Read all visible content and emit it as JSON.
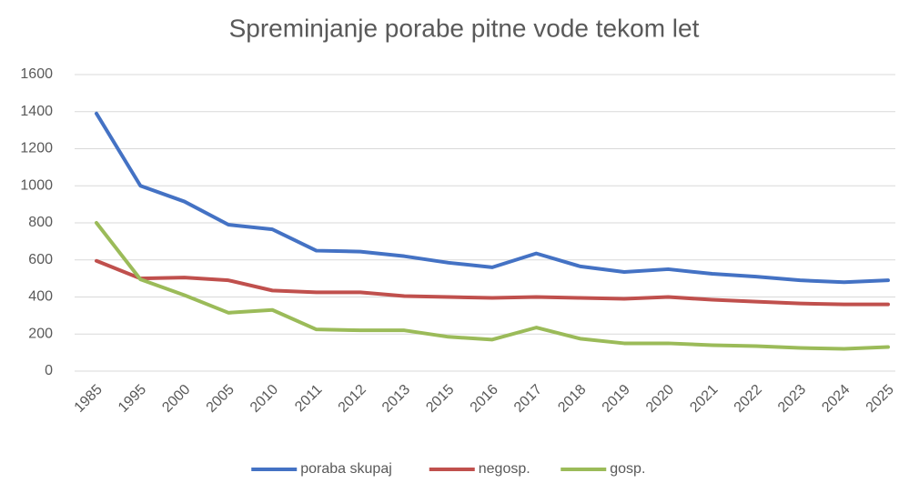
{
  "chart_data": {
    "type": "line",
    "title": "Spreminjanje porabe pitne vode tekom let",
    "categories": [
      "1985",
      "1995",
      "2000",
      "2005",
      "2010",
      "2011",
      "2012",
      "2013",
      "2015",
      "2016",
      "2017",
      "2018",
      "2019",
      "2020",
      "2021",
      "2022",
      "2023",
      "2024",
      "2025"
    ],
    "series": [
      {
        "name": "poraba skupaj",
        "color": "#4472c4",
        "values": [
          1390,
          1000,
          915,
          790,
          765,
          650,
          645,
          620,
          585,
          560,
          635,
          565,
          535,
          550,
          525,
          510,
          490,
          480,
          490
        ]
      },
      {
        "name": "negosp.",
        "color": "#c0504d",
        "values": [
          595,
          500,
          505,
          490,
          435,
          425,
          425,
          405,
          400,
          395,
          400,
          395,
          390,
          400,
          385,
          375,
          365,
          360,
          360
        ]
      },
      {
        "name": "gosp.",
        "color": "#9bbb59",
        "values": [
          800,
          495,
          410,
          315,
          330,
          225,
          220,
          220,
          185,
          170,
          235,
          175,
          150,
          150,
          140,
          135,
          125,
          120,
          130
        ]
      }
    ],
    "ylim": [
      0,
      1600
    ],
    "yticks": [
      0,
      200,
      400,
      600,
      800,
      1000,
      1200,
      1400,
      1600
    ],
    "grid": true,
    "legend": "bottom"
  }
}
